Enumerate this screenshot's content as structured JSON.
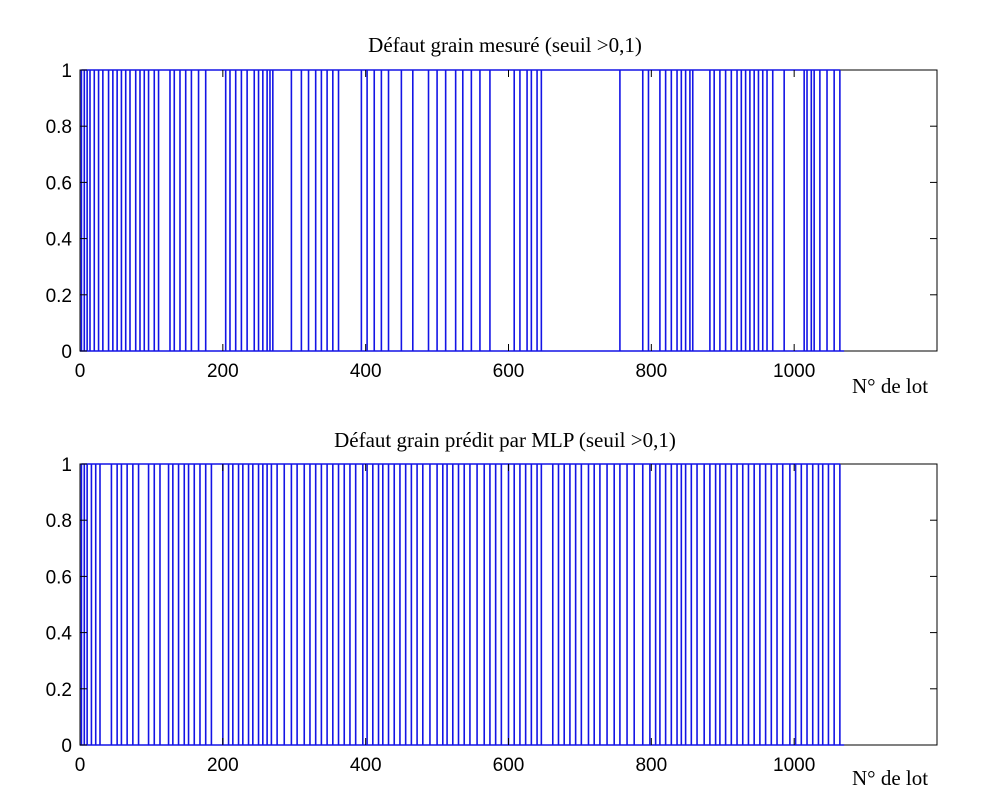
{
  "chart_data": [
    {
      "type": "line",
      "title": "Défaut grain mesuré (seuil >0,1)",
      "xlabel": "N° de lot",
      "ylabel": "",
      "xlim": [
        0,
        1200
      ],
      "ylim": [
        0,
        1
      ],
      "xticks": [
        "0",
        "200",
        "400",
        "600",
        "800",
        "1000"
      ],
      "yticks": [
        "0",
        "0.2",
        "0.4",
        "0.6",
        "0.8",
        "1"
      ],
      "series_color": "#1414e6",
      "last_lot": 1070,
      "defect_lots": [
        2,
        6,
        10,
        14,
        20,
        26,
        32,
        40,
        46,
        52,
        58,
        64,
        70,
        78,
        84,
        90,
        96,
        104,
        110,
        126,
        132,
        140,
        148,
        156,
        166,
        176,
        204,
        210,
        218,
        226,
        234,
        244,
        250,
        256,
        262,
        266,
        270,
        296,
        310,
        320,
        330,
        338,
        346,
        354,
        362,
        394,
        402,
        412,
        422,
        432,
        450,
        466,
        488,
        500,
        512,
        526,
        536,
        548,
        560,
        574,
        608,
        616,
        626,
        632,
        640,
        646,
        756,
        788,
        796,
        812,
        820,
        828,
        836,
        842,
        848,
        854,
        858,
        882,
        888,
        896,
        904,
        912,
        920,
        926,
        932,
        938,
        944,
        950,
        956,
        962,
        970,
        986,
        1014,
        1018,
        1024,
        1028,
        1036,
        1046,
        1056,
        1064
      ]
    },
    {
      "type": "line",
      "title": "Défaut grain prédit par MLP (seuil >0,1)",
      "xlabel": "N° de lot",
      "ylabel": "",
      "xlim": [
        0,
        1200
      ],
      "ylim": [
        0,
        1
      ],
      "xticks": [
        "0",
        "200",
        "400",
        "600",
        "800",
        "1000"
      ],
      "yticks": [
        "0",
        "0.2",
        "0.4",
        "0.6",
        "0.8",
        "1"
      ],
      "series_color": "#1414e6",
      "last_lot": 1070,
      "defect_lots": [
        2,
        6,
        10,
        16,
        22,
        28,
        44,
        52,
        58,
        66,
        74,
        82,
        96,
        104,
        112,
        124,
        130,
        138,
        146,
        152,
        160,
        168,
        176,
        184,
        200,
        208,
        214,
        222,
        228,
        236,
        242,
        250,
        256,
        262,
        268,
        276,
        286,
        296,
        304,
        314,
        322,
        330,
        338,
        346,
        354,
        362,
        370,
        378,
        386,
        396,
        402,
        410,
        418,
        424,
        432,
        440,
        448,
        456,
        464,
        472,
        480,
        490,
        500,
        508,
        514,
        522,
        530,
        538,
        546,
        556,
        566,
        574,
        582,
        590,
        600,
        608,
        616,
        624,
        632,
        640,
        646,
        662,
        670,
        678,
        686,
        694,
        702,
        712,
        720,
        728,
        738,
        748,
        756,
        766,
        776,
        788,
        798,
        806,
        812,
        820,
        828,
        836,
        842,
        848,
        856,
        864,
        874,
        882,
        890,
        896,
        904,
        912,
        920,
        928,
        936,
        944,
        952,
        960,
        968,
        976,
        984,
        994,
        1002,
        1010,
        1018,
        1026,
        1034,
        1040,
        1048,
        1056,
        1064
      ]
    }
  ]
}
